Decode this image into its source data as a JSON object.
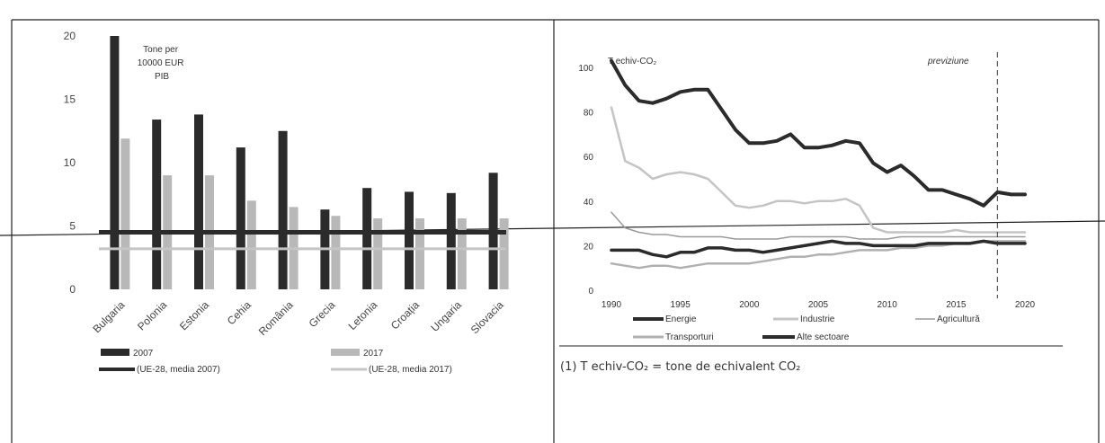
{
  "colors": {
    "dark": "#2b2b2b",
    "grey_bar": "#b8b8b8",
    "light_line": "#c4c4c4",
    "mid_line": "#9a9a9a",
    "frame": "#222222"
  },
  "chart_data": [
    {
      "type": "bar",
      "title": "Tone per 10000 EUR PIB",
      "title_lines": [
        "Tone per",
        "10000 EUR",
        "PIB"
      ],
      "categories": [
        "Bulgaria",
        "Polonia",
        "Estonia",
        "Cehia",
        "România",
        "Grecia",
        "Letonia",
        "Croația",
        "Ungaria",
        "Slovacia"
      ],
      "series": [
        {
          "name": "2007",
          "values": [
            20.0,
            13.4,
            13.8,
            11.2,
            12.5,
            6.3,
            8.0,
            7.7,
            7.6,
            9.2
          ]
        },
        {
          "name": "2017",
          "values": [
            11.9,
            9.0,
            9.0,
            7.0,
            6.5,
            5.8,
            5.6,
            5.6,
            5.6,
            5.6
          ]
        }
      ],
      "reference_lines": [
        {
          "name": "(UE-28, media 2007)",
          "value": 4.5
        },
        {
          "name": "(UE-28, media 2017)",
          "value": 3.2
        }
      ],
      "yticks": [
        0,
        5,
        10,
        15,
        20
      ],
      "ylim": [
        0,
        20
      ],
      "legend_position": "bottom"
    },
    {
      "type": "line",
      "ylabel": "T echiv-CO₂",
      "annotation": "previziune",
      "forecast_from": 2018,
      "xticks": [
        1990,
        1995,
        2000,
        2005,
        2010,
        2015,
        2020
      ],
      "xlim": [
        1990,
        2020
      ],
      "yticks": [
        0,
        20,
        40,
        60,
        80,
        100
      ],
      "ylim": [
        0,
        100
      ],
      "series": [
        {
          "name": "Energie",
          "x": [
            1990,
            1991,
            1992,
            1993,
            1994,
            1995,
            1996,
            1997,
            1998,
            1999,
            2000,
            2001,
            2002,
            2003,
            2004,
            2005,
            2006,
            2007,
            2008,
            2009,
            2010,
            2011,
            2012,
            2013,
            2014,
            2015,
            2016,
            2017,
            2018,
            2019,
            2020
          ],
          "y": [
            103,
            92,
            85,
            84,
            86,
            89,
            90,
            90,
            81,
            72,
            66,
            66,
            67,
            70,
            64,
            64,
            65,
            67,
            66,
            57,
            53,
            56,
            51,
            45,
            45,
            43,
            41,
            38,
            44,
            43,
            43
          ]
        },
        {
          "name": "Industrie",
          "x": [
            1990,
            1991,
            1992,
            1993,
            1994,
            1995,
            1996,
            1997,
            1998,
            1999,
            2000,
            2001,
            2002,
            2003,
            2004,
            2005,
            2006,
            2007,
            2008,
            2009,
            2010,
            2011,
            2012,
            2013,
            2014,
            2015,
            2016,
            2017,
            2018,
            2019,
            2020
          ],
          "y": [
            82,
            58,
            55,
            50,
            52,
            53,
            52,
            50,
            44,
            38,
            37,
            38,
            40,
            40,
            39,
            40,
            40,
            41,
            38,
            28,
            26,
            26,
            26,
            26,
            26,
            27,
            26,
            26,
            26,
            26,
            26
          ]
        },
        {
          "name": "Agricultură",
          "x": [
            1990,
            1991,
            1992,
            1993,
            1994,
            1995,
            1996,
            1997,
            1998,
            1999,
            2000,
            2001,
            2002,
            2003,
            2004,
            2005,
            2006,
            2007,
            2008,
            2009,
            2010,
            2011,
            2012,
            2013,
            2014,
            2015,
            2016,
            2017,
            2018,
            2019,
            2020
          ],
          "y": [
            35,
            28,
            26,
            25,
            25,
            24,
            24,
            24,
            24,
            23,
            23,
            23,
            23,
            24,
            24,
            24,
            24,
            24,
            23,
            23,
            23,
            24,
            24,
            24,
            24,
            24,
            24,
            24,
            24,
            24,
            24
          ]
        },
        {
          "name": "Transporturi",
          "x": [
            1990,
            1991,
            1992,
            1993,
            1994,
            1995,
            1996,
            1997,
            1998,
            1999,
            2000,
            2001,
            2002,
            2003,
            2004,
            2005,
            2006,
            2007,
            2008,
            2009,
            2010,
            2011,
            2012,
            2013,
            2014,
            2015,
            2016,
            2017,
            2018,
            2019,
            2020
          ],
          "y": [
            12,
            11,
            10,
            11,
            11,
            10,
            11,
            12,
            12,
            12,
            12,
            13,
            14,
            15,
            15,
            16,
            16,
            17,
            18,
            18,
            18,
            19,
            19,
            20,
            20,
            21,
            21,
            22,
            22,
            22,
            22
          ]
        },
        {
          "name": "Alte sectoare",
          "x": [
            1990,
            1991,
            1992,
            1993,
            1994,
            1995,
            1996,
            1997,
            1998,
            1999,
            2000,
            2001,
            2002,
            2003,
            2004,
            2005,
            2006,
            2007,
            2008,
            2009,
            2010,
            2011,
            2012,
            2013,
            2014,
            2015,
            2016,
            2017,
            2018,
            2019,
            2020
          ],
          "y": [
            18,
            18,
            18,
            16,
            15,
            17,
            17,
            19,
            19,
            18,
            18,
            17,
            18,
            19,
            20,
            21,
            22,
            21,
            21,
            20,
            20,
            20,
            20,
            21,
            21,
            21,
            21,
            22,
            21,
            21,
            21
          ]
        }
      ],
      "legend_position": "bottom",
      "footnote": "(1) T echiv-CO₂ = tone de echivalent CO₂"
    }
  ]
}
